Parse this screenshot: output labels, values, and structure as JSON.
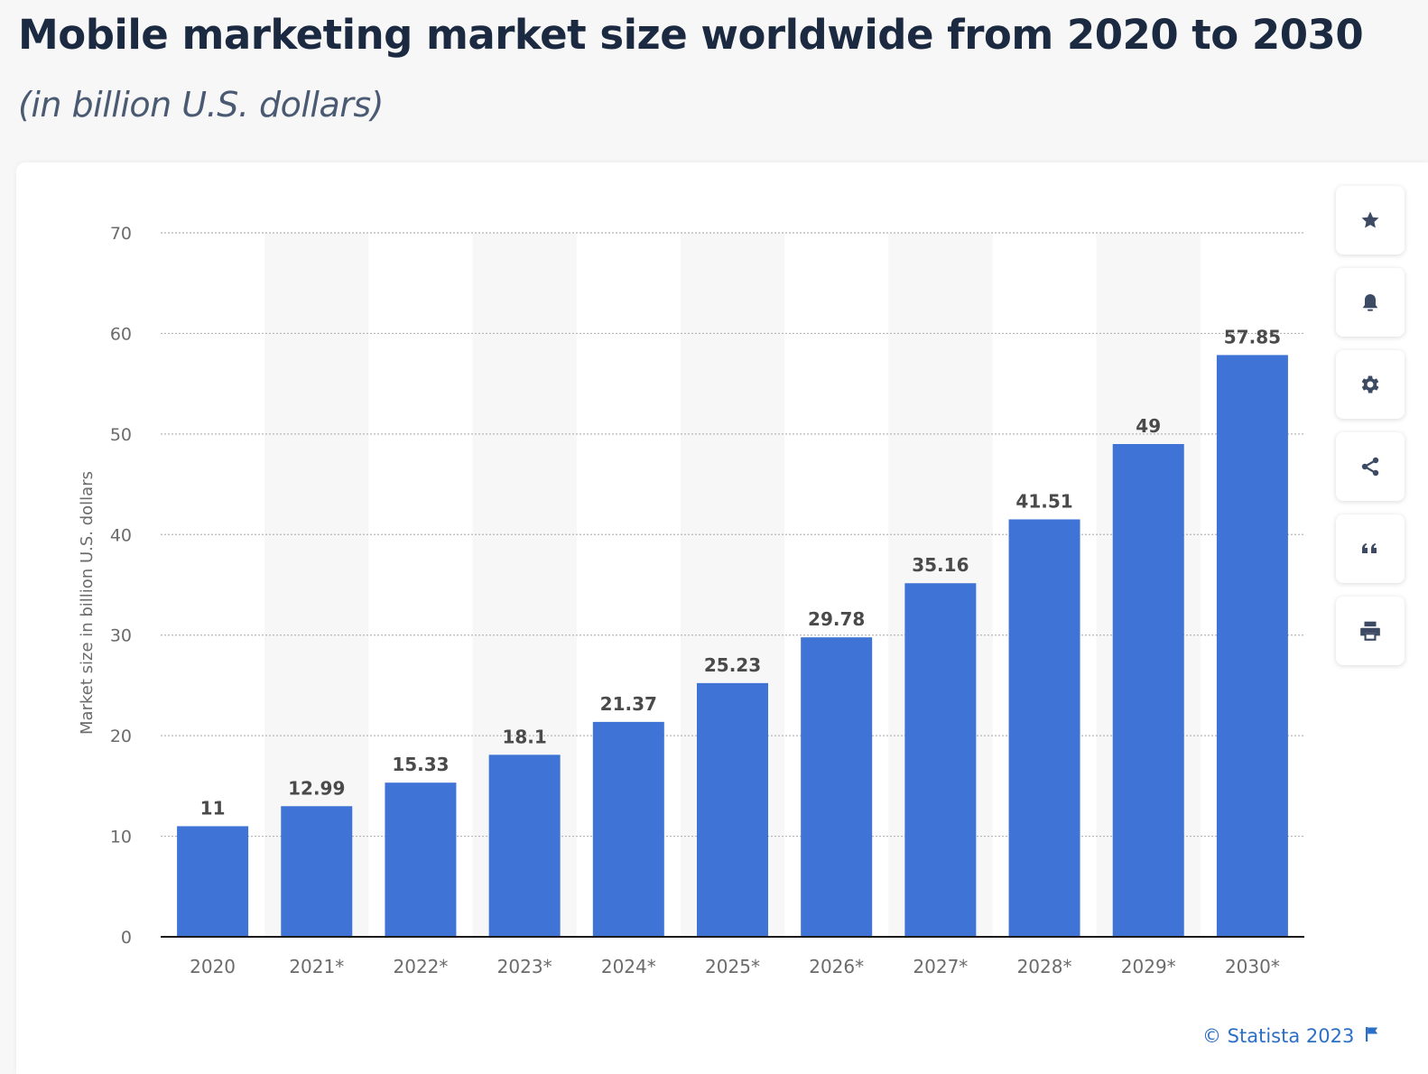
{
  "header": {
    "title": "Mobile marketing market size worldwide from 2020 to 2030",
    "subtitle": "(in billion U.S. dollars)"
  },
  "toolbar": {
    "icons": [
      "star-icon",
      "bell-icon",
      "gear-icon",
      "share-icon",
      "quote-icon",
      "print-icon"
    ]
  },
  "footer": {
    "copyright": "© Statista 2023",
    "flag_icon": "flag-icon"
  },
  "colors": {
    "bar": "#3f74d6",
    "title": "#1b2a41",
    "subtitle": "#4a5a73",
    "link": "#2c6fc7",
    "band": "#f7f7f8",
    "grid": "#b5b5b5",
    "tick_text": "#6b6b6b",
    "label_text": "#4a4a4a"
  },
  "chart_data": {
    "type": "bar",
    "categories": [
      "2020",
      "2021*",
      "2022*",
      "2023*",
      "2024*",
      "2025*",
      "2026*",
      "2027*",
      "2028*",
      "2029*",
      "2030*"
    ],
    "values": [
      11,
      12.99,
      15.33,
      18.1,
      21.37,
      25.23,
      29.78,
      35.16,
      41.51,
      49,
      57.85
    ],
    "value_labels": [
      "11",
      "12.99",
      "15.33",
      "18.1",
      "21.37",
      "25.23",
      "29.78",
      "35.16",
      "41.51",
      "49",
      "57.85"
    ],
    "ylabel": "Market size in billion U.S. dollars",
    "xlabel": "",
    "ylim": [
      0,
      70
    ],
    "yticks": [
      "0",
      "10",
      "20",
      "30",
      "40",
      "50",
      "60",
      "70"
    ],
    "ytick_values": [
      0,
      10,
      20,
      30,
      40,
      50,
      60,
      70
    ],
    "grid": true,
    "legend": "none"
  }
}
